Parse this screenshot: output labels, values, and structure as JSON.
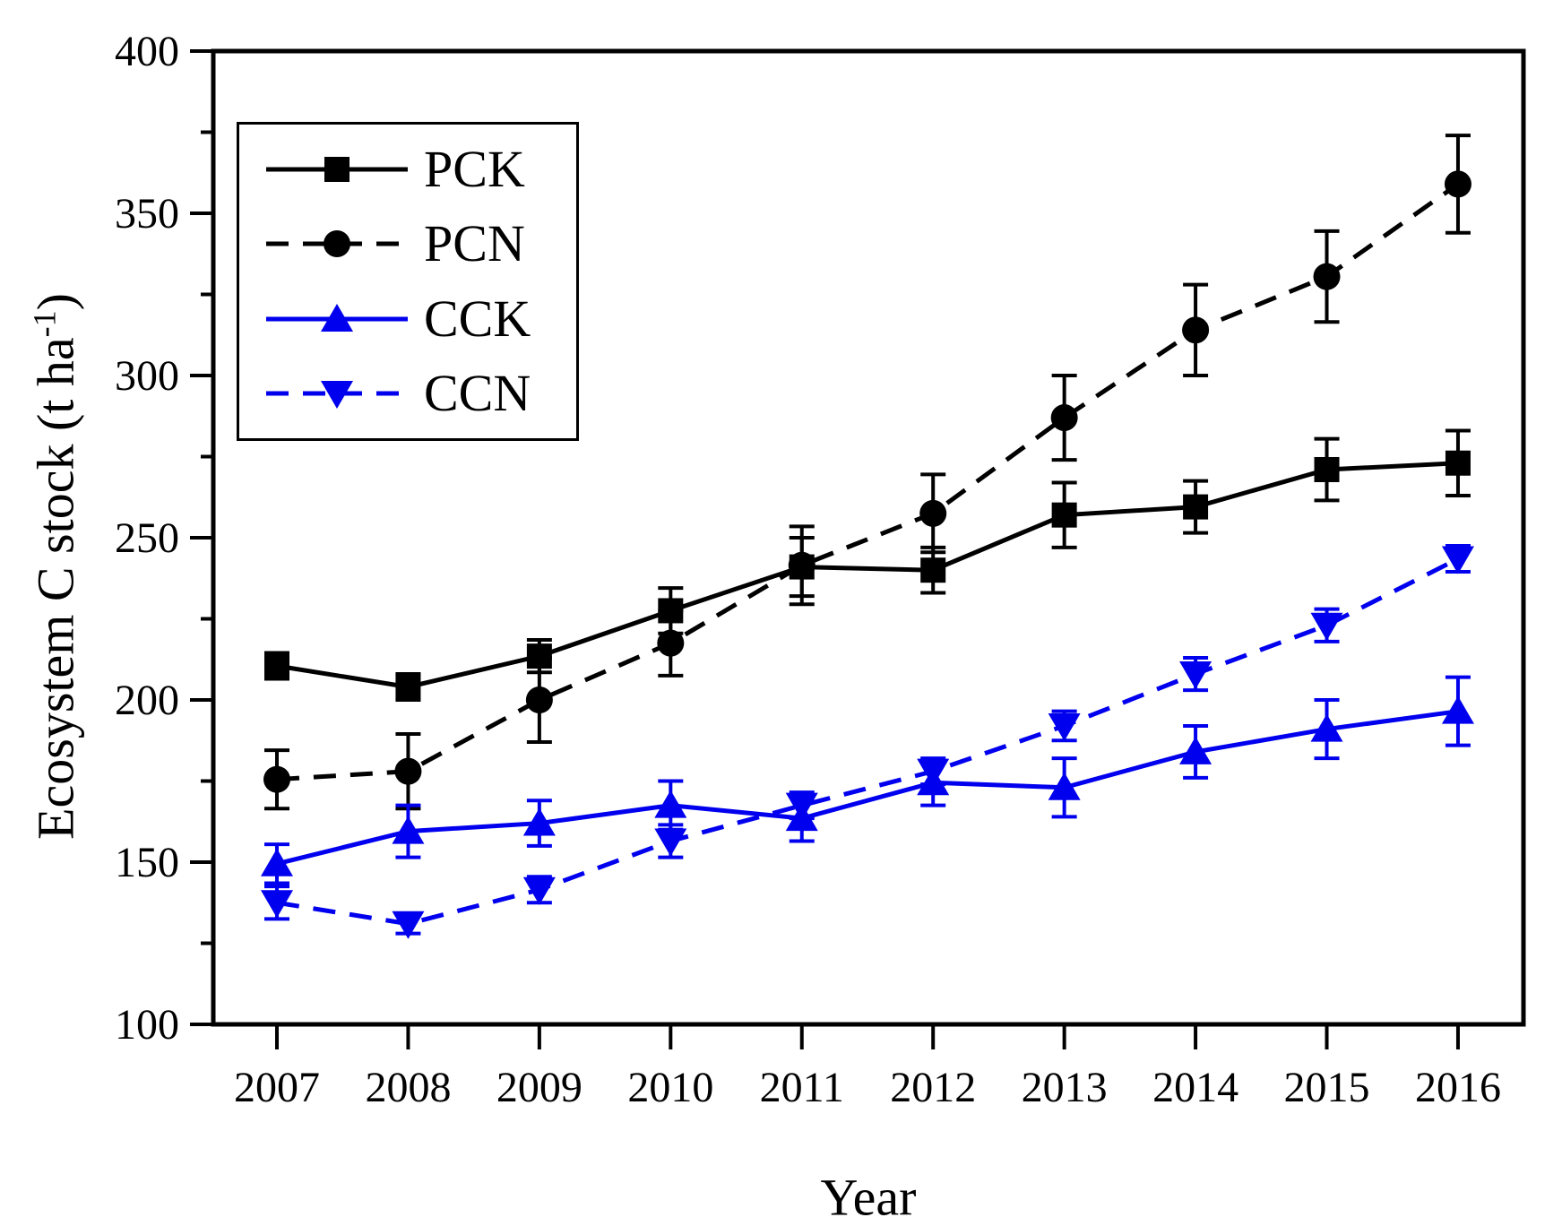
{
  "chart_data": {
    "type": "line",
    "x": [
      2007,
      2008,
      2009,
      2010,
      2011,
      2012,
      2013,
      2014,
      2015,
      2016
    ],
    "xlabel": "Year",
    "ylabel": "Ecosystem C stock (t ha⁻¹)",
    "ylabel_parts": {
      "prefix": "Ecosystem C stock (t ha",
      "sup": "-1",
      "suffix": ")"
    },
    "ylim": [
      100,
      400
    ],
    "y_major_ticks": [
      100,
      150,
      200,
      250,
      300,
      350,
      400
    ],
    "y_minor_ticks": [
      125,
      175,
      225,
      275,
      325,
      375
    ],
    "grid": false,
    "legend_position": "upper-left",
    "error_bars": true,
    "series": [
      {
        "name": "PCK",
        "color": "#000000",
        "line": "solid",
        "marker": "square",
        "values": [
          210.5,
          204,
          213.5,
          227.5,
          241,
          240,
          257,
          259.5,
          271,
          273
        ],
        "errors": [
          4,
          4,
          5,
          7,
          9,
          7,
          10,
          8,
          9.5,
          10
        ]
      },
      {
        "name": "PCN",
        "color": "#000000",
        "line": "dashed",
        "marker": "circle",
        "values": [
          175.5,
          178,
          200,
          217.5,
          241.5,
          257.5,
          287,
          314,
          330.5,
          359
        ],
        "errors": [
          9,
          11.5,
          13,
          10,
          12,
          12,
          13,
          14,
          14,
          15
        ]
      },
      {
        "name": "CCK",
        "color": "#0000ee",
        "line": "solid",
        "marker": "triangle-up",
        "values": [
          149.5,
          159.5,
          162,
          167.5,
          163.5,
          174.5,
          173,
          184,
          191,
          196.5
        ],
        "errors": [
          6,
          8,
          7,
          7.5,
          7,
          7,
          9,
          8,
          9,
          10.5
        ]
      },
      {
        "name": "CCN",
        "color": "#0000ee",
        "line": "dashed",
        "marker": "triangle-down",
        "values": [
          137.5,
          131,
          141.5,
          156.5,
          167.5,
          178,
          192,
          208,
          223,
          243.5
        ],
        "errors": [
          5,
          3,
          4,
          5,
          4,
          4,
          4.5,
          5,
          5,
          4
        ]
      }
    ]
  }
}
